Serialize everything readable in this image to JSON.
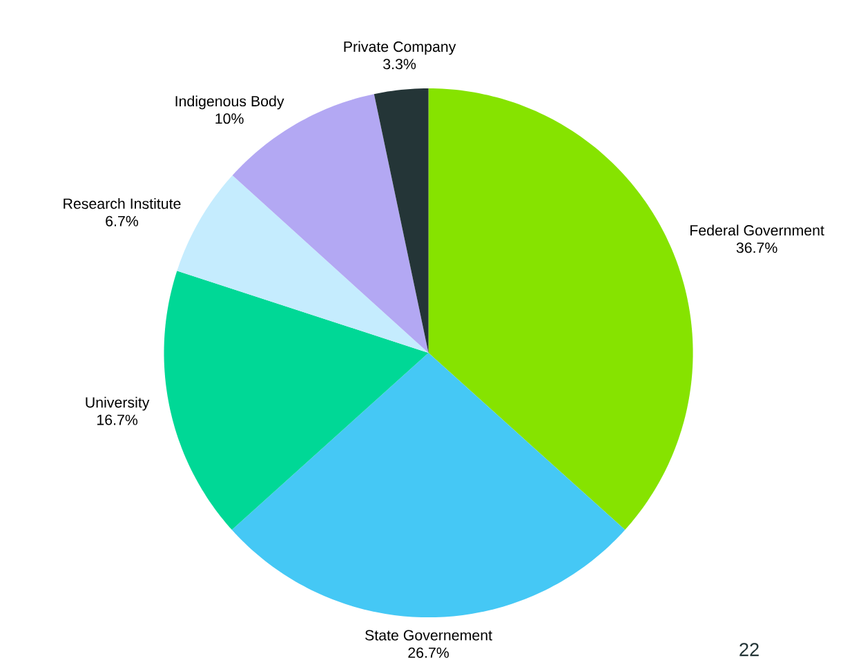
{
  "chart_data": {
    "type": "pie",
    "categories": [
      "Federal Government",
      "State Governement",
      "University",
      "Research Institute",
      "Indigenous Body",
      "Private Company"
    ],
    "values": [
      36.7,
      26.7,
      16.7,
      6.7,
      10,
      3.3
    ],
    "value_labels": [
      "36.7%",
      "26.7%",
      "16.7%",
      "6.7%",
      "10%",
      "3.3%"
    ],
    "colors": [
      "#86e300",
      "#45c8f5",
      "#00d896",
      "#c5ecfe",
      "#b3a8f3",
      "#243537"
    ],
    "annotations": [
      "22"
    ]
  }
}
